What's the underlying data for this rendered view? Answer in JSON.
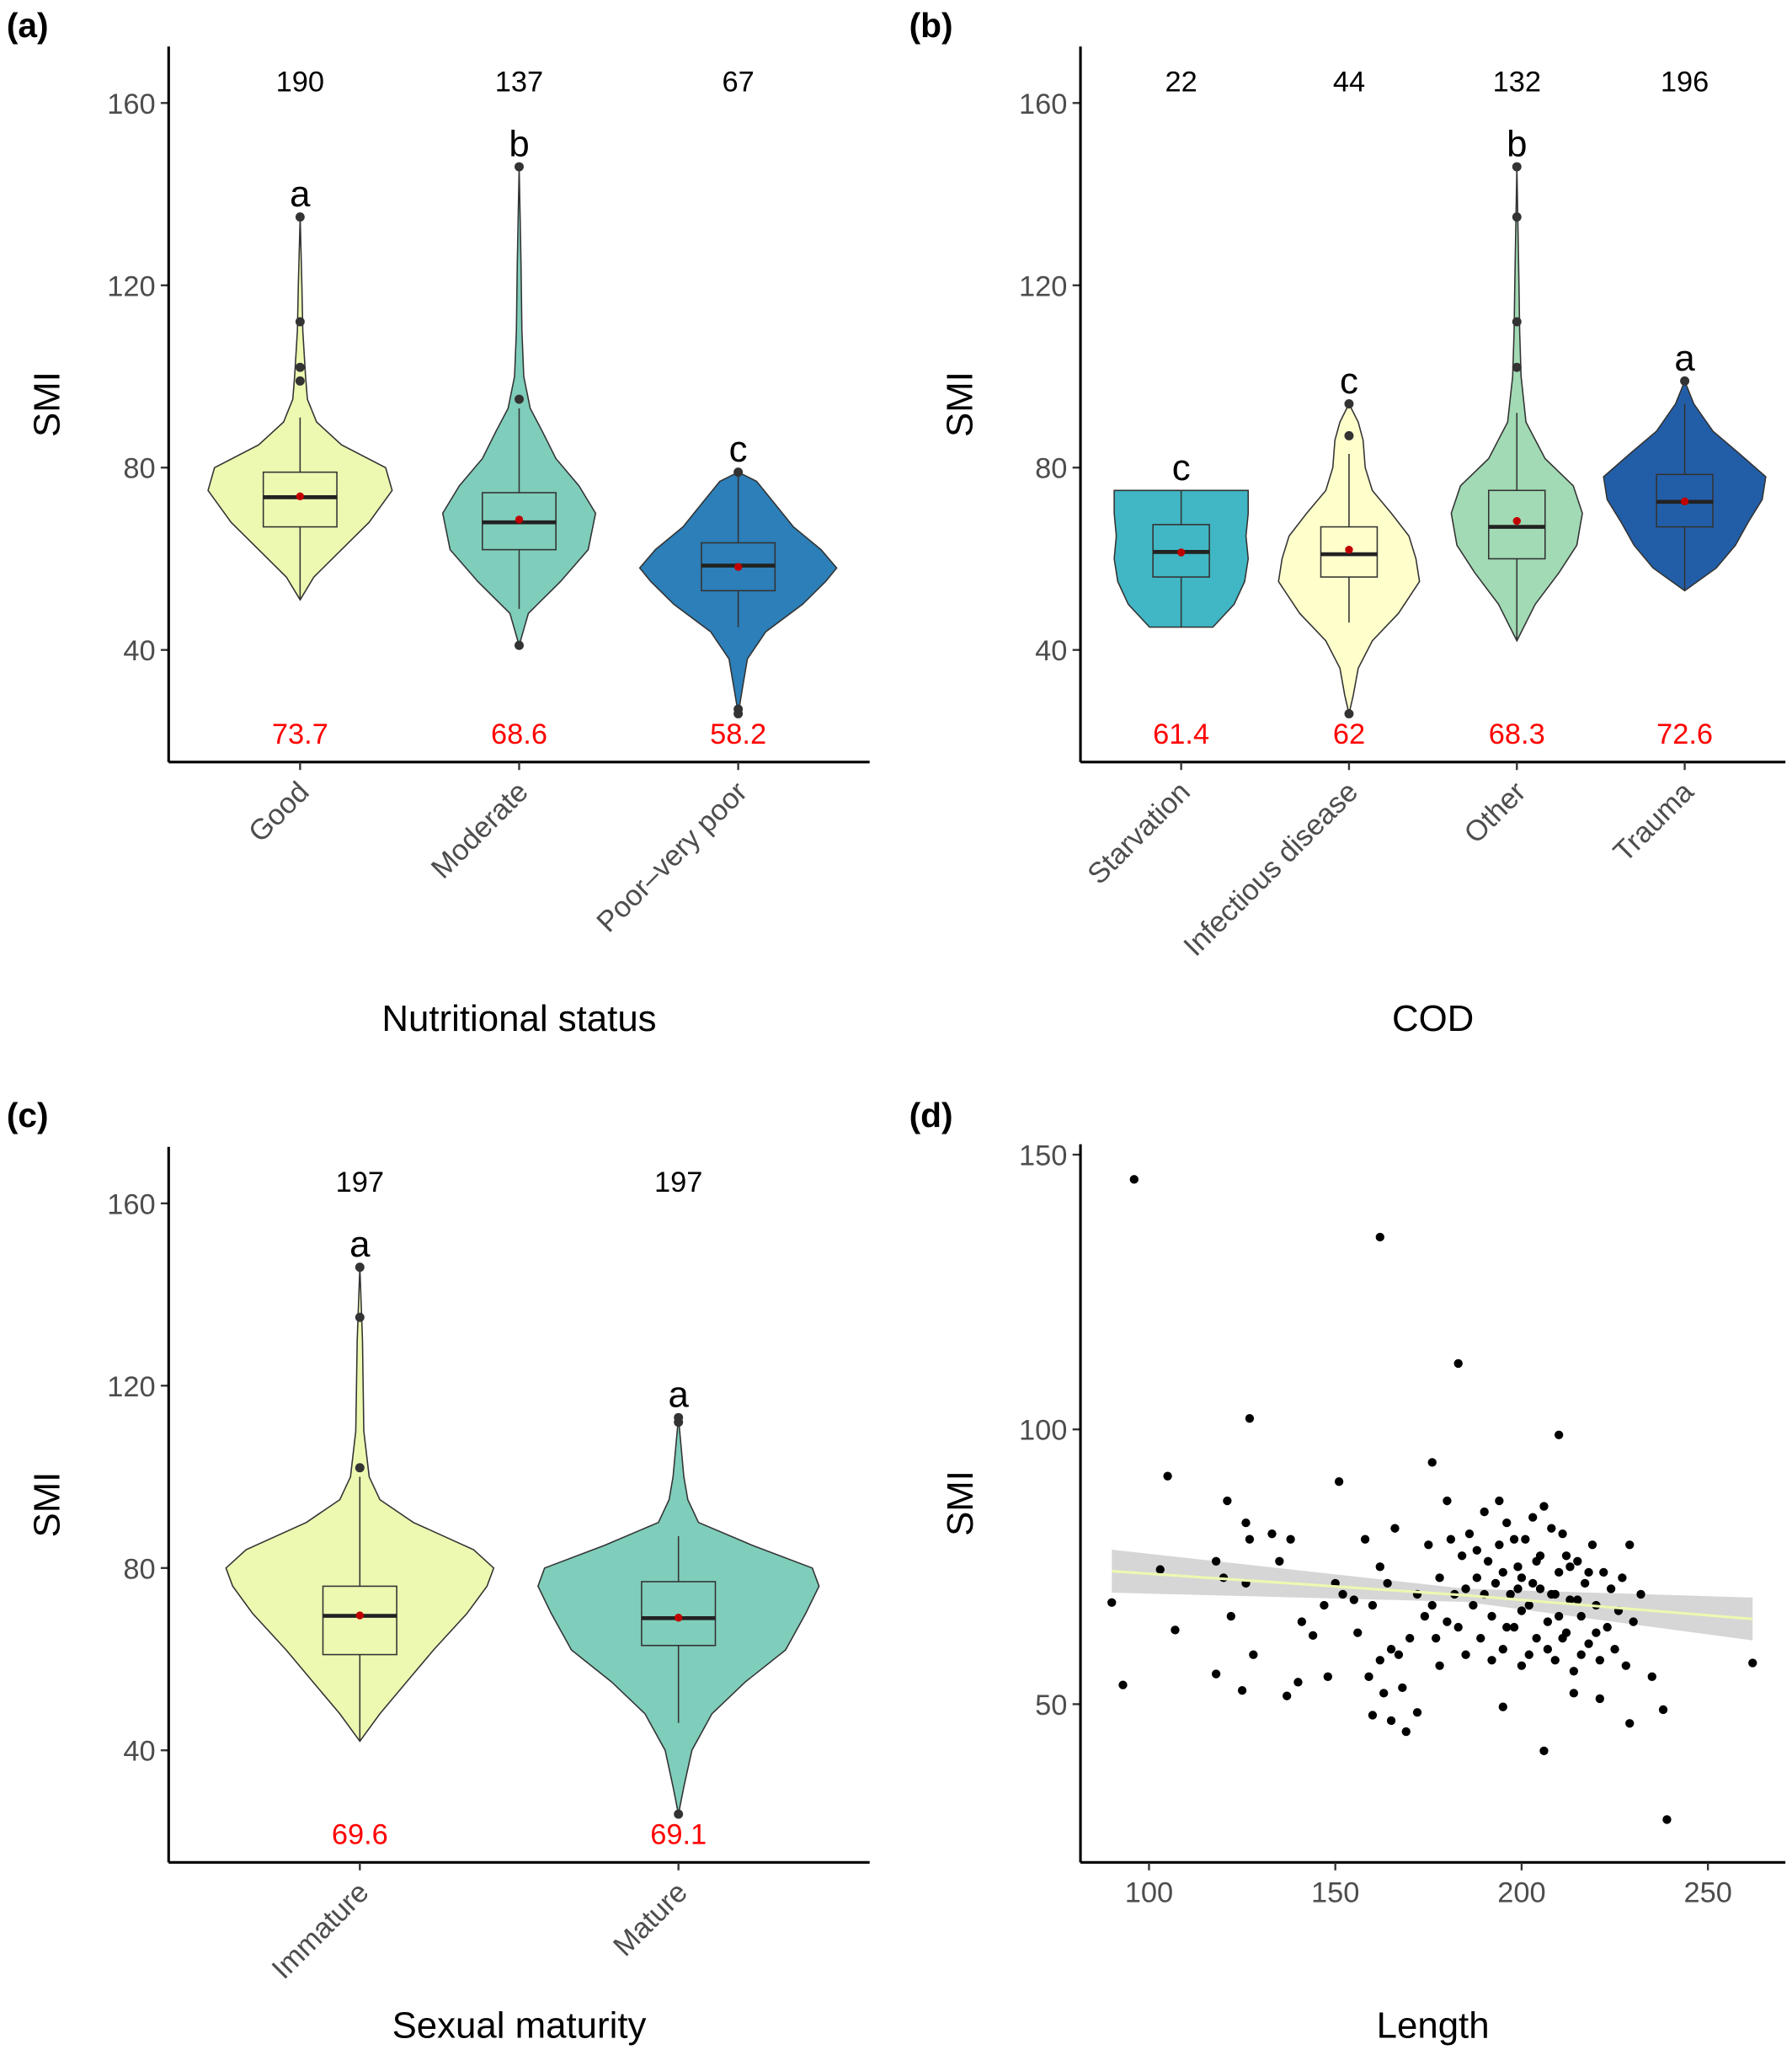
{
  "chart_data": [
    {
      "type": "violin",
      "panel_label": "(a)",
      "xlabel": "Nutritional status",
      "ylabel": "SMI",
      "ylim": [
        15.4,
        172.4
      ],
      "yticks": [
        40,
        80,
        120,
        160
      ],
      "categories": [
        "Good",
        "Moderate",
        "Poor–very poor"
      ],
      "groups": [
        {
          "color": "#edf8b1",
          "n": 190,
          "letter": "a",
          "mean": 73.7,
          "q1": 67,
          "median": 73.5,
          "q3": 79,
          "whisker_low": 51,
          "whisker_high": 91,
          "outliers": [
            99,
            102,
            112,
            135
          ],
          "density_y": [
            51,
            56,
            62,
            68,
            75,
            80,
            85,
            90,
            95,
            100,
            110,
            120,
            135
          ],
          "density": [
            0,
            0.15,
            0.45,
            0.75,
            1.0,
            0.93,
            0.45,
            0.18,
            0.08,
            0.06,
            0.03,
            0.02,
            0
          ]
        },
        {
          "color": "#7fcdbb",
          "n": 137,
          "letter": "b",
          "mean": 68.6,
          "q1": 62,
          "median": 68,
          "q3": 74.5,
          "whisker_low": 49,
          "whisker_high": 93,
          "outliers": [
            41,
            95,
            146
          ],
          "density_y": [
            41,
            48,
            55,
            62,
            70,
            76,
            82,
            88,
            93,
            100,
            110,
            125,
            146
          ],
          "density": [
            0,
            0.1,
            0.45,
            0.75,
            0.83,
            0.65,
            0.4,
            0.25,
            0.12,
            0.05,
            0.03,
            0.02,
            0
          ]
        },
        {
          "color": "#2c7fb8",
          "n": 67,
          "letter": "c",
          "mean": 58.2,
          "q1": 53,
          "median": 58.5,
          "q3": 63.5,
          "whisker_low": 45,
          "whisker_high": 78,
          "outliers": [
            26,
            27,
            79
          ],
          "density_y": [
            26,
            32,
            38,
            44,
            50,
            55,
            58,
            62,
            67,
            72,
            77,
            79
          ],
          "density": [
            0,
            0.05,
            0.1,
            0.3,
            0.7,
            0.95,
            1.07,
            0.9,
            0.6,
            0.4,
            0.2,
            0
          ]
        }
      ]
    },
    {
      "type": "violin",
      "panel_label": "(b)",
      "xlabel": "COD",
      "ylabel": "SMI",
      "ylim": [
        15.4,
        172.4
      ],
      "yticks": [
        40,
        80,
        120,
        160
      ],
      "categories": [
        "Starvation",
        "Infectious disease",
        "Other",
        "Trauma"
      ],
      "groups": [
        {
          "color": "#41b6c4",
          "n": 22,
          "letter": "c",
          "mean": 61.4,
          "q1": 56,
          "median": 61.5,
          "q3": 67.5,
          "whisker_low": 45,
          "whisker_high": 75,
          "outliers": [],
          "density_y": [
            45,
            50,
            55,
            60,
            65,
            70,
            75
          ],
          "density": [
            0.45,
            0.75,
            0.9,
            0.95,
            0.92,
            0.95,
            0.95
          ]
        },
        {
          "color": "#ffffcc",
          "n": 44,
          "letter": "c",
          "mean": 62,
          "q1": 56,
          "median": 61,
          "q3": 67,
          "whisker_low": 46,
          "whisker_high": 83,
          "outliers": [
            26,
            87,
            94
          ],
          "density_y": [
            26,
            30,
            36,
            42,
            48,
            55,
            60,
            65,
            70,
            75,
            80,
            86,
            90,
            94
          ],
          "density": [
            0,
            0.06,
            0.13,
            0.33,
            0.7,
            1.0,
            0.95,
            0.85,
            0.6,
            0.33,
            0.23,
            0.2,
            0.13,
            0
          ]
        },
        {
          "color": "#a1dab4",
          "n": 132,
          "letter": "b",
          "mean": 68.3,
          "q1": 60,
          "median": 67,
          "q3": 75,
          "whisker_low": 42,
          "whisker_high": 92,
          "outliers": [
            102,
            112,
            135,
            146
          ],
          "density_y": [
            42,
            50,
            57,
            63,
            70,
            76,
            82,
            90,
            100,
            110,
            120,
            146
          ],
          "density": [
            0,
            0.26,
            0.6,
            0.85,
            0.93,
            0.8,
            0.4,
            0.13,
            0.06,
            0.04,
            0.03,
            0
          ]
        },
        {
          "color": "#225ea8",
          "n": 196,
          "letter": "a",
          "mean": 72.6,
          "q1": 67,
          "median": 72.5,
          "q3": 78.5,
          "whisker_low": 53,
          "whisker_high": 94,
          "outliers": [
            99
          ],
          "density_y": [
            53,
            58,
            63,
            68,
            73,
            78,
            83,
            88,
            94,
            99
          ],
          "density": [
            0,
            0.45,
            0.72,
            0.9,
            1.1,
            1.15,
            0.78,
            0.4,
            0.13,
            0
          ]
        }
      ]
    },
    {
      "type": "violin",
      "panel_label": "(c)",
      "xlabel": "Sexual maturity",
      "ylabel": "SMI",
      "ylim": [
        15.4,
        172.4
      ],
      "yticks": [
        40,
        80,
        120,
        160
      ],
      "categories": [
        "Immature",
        "Mature"
      ],
      "groups": [
        {
          "color": "#edf8b1",
          "n": 197,
          "letter": "a",
          "mean": 69.6,
          "q1": 61,
          "median": 69.5,
          "q3": 76,
          "whisker_low": 42,
          "whisker_high": 100,
          "outliers": [
            102,
            135,
            146
          ],
          "density_y": [
            42,
            48,
            55,
            62,
            70,
            76,
            80,
            84,
            90,
            95,
            100,
            110,
            130,
            146
          ],
          "density": [
            0,
            0.15,
            0.35,
            0.55,
            0.8,
            0.95,
            1.0,
            0.85,
            0.4,
            0.15,
            0.07,
            0.03,
            0.02,
            0
          ]
        },
        {
          "color": "#7fcdbb",
          "n": 197,
          "letter": "a",
          "mean": 69.1,
          "q1": 63,
          "median": 69,
          "q3": 77,
          "whisker_low": 46,
          "whisker_high": 87,
          "outliers": [
            26,
            112,
            113
          ],
          "density_y": [
            26,
            32,
            40,
            48,
            55,
            62,
            70,
            76,
            80,
            85,
            90,
            95,
            100,
            113
          ],
          "density": [
            0,
            0.04,
            0.1,
            0.25,
            0.5,
            0.8,
            0.95,
            1.05,
            1.0,
            0.55,
            0.15,
            0.07,
            0.04,
            0
          ]
        }
      ]
    },
    {
      "type": "scatter",
      "panel_label": "(d)",
      "xlabel": "Length",
      "ylabel": "SMI",
      "xlim": [
        81.6,
        270.8
      ],
      "ylim": [
        21.2,
        151.9
      ],
      "xticks": [
        100,
        150,
        200,
        250
      ],
      "yticks": [
        50,
        100,
        150
      ],
      "color": "#000000",
      "x": [
        96,
        162,
        183,
        127,
        210,
        105,
        176,
        151,
        93,
        90,
        107,
        118,
        125,
        128,
        137,
        140,
        165,
        169,
        206,
        238,
        229,
        239,
        262,
        235,
        195,
        221,
        214,
        160,
        163,
        172,
        122,
        121,
        126,
        127,
        133,
        138,
        147,
        144,
        148,
        141,
        118,
        103,
        120,
        126,
        135,
        150,
        152,
        155,
        158,
        162,
        164,
        166,
        167,
        160,
        156,
        159,
        162,
        165,
        168,
        170,
        172,
        174,
        175,
        177,
        178,
        180,
        181,
        182,
        183,
        184,
        185,
        186,
        187,
        188,
        189,
        190,
        191,
        192,
        193,
        194,
        195,
        196,
        197,
        198,
        199,
        200,
        201,
        202,
        203,
        204,
        205,
        206,
        207,
        208,
        209,
        210,
        211,
        212,
        213,
        214,
        215,
        216,
        217,
        218,
        219,
        220,
        221,
        222,
        223,
        224,
        225,
        226,
        227,
        228,
        229,
        230,
        232,
        190,
        192,
        195,
        198,
        200,
        203,
        205,
        207,
        210,
        212,
        215,
        218,
        220,
        188,
        185,
        180,
        178,
        176,
        200,
        202,
        196,
        194,
        199,
        204,
        208,
        211,
        213,
        216,
        209
      ],
      "y": [
        145.5,
        135,
        112,
        102,
        99,
        91.5,
        94,
        90.5,
        53.5,
        68.5,
        63.5,
        55.5,
        52.5,
        59,
        51.5,
        54,
        47,
        45,
        41.5,
        49,
        46.5,
        29,
        57.5,
        55,
        49.5,
        51,
        52,
        48,
        52,
        48.5,
        66,
        87,
        83,
        80,
        81,
        80,
        68,
        62.5,
        55,
        65,
        76,
        74.5,
        73,
        72,
        76,
        72,
        70,
        69,
        80,
        75,
        72,
        82,
        59,
        68,
        63,
        55,
        58,
        60,
        53,
        62,
        70,
        66,
        79,
        62,
        73,
        87,
        80,
        70,
        64,
        77,
        59,
        81,
        68,
        73,
        62,
        85,
        76,
        66,
        72,
        79,
        60,
        83,
        70,
        64,
        75,
        57,
        80,
        68,
        72,
        62,
        77,
        86,
        65,
        70,
        58,
        74,
        81,
        63,
        69,
        56,
        76,
        66,
        72,
        61,
        79,
        68,
        58,
        74,
        64,
        71,
        60,
        67,
        73,
        57,
        79,
        65,
        70,
        70,
        58,
        74,
        80,
        67,
        84,
        71,
        60,
        66,
        77,
        69,
        74,
        63,
        78,
        71,
        65,
        57,
        68,
        73,
        59,
        64,
        87,
        71,
        76,
        82,
        62,
        75,
        59,
        70
      ],
      "fit": {
        "color": "#edf8b1",
        "band_color": "#cccccc",
        "x": [
          90,
          185,
          262
        ],
        "y": [
          74.2,
          69.8,
          65.5
        ],
        "lower": [
          70.3,
          68.6,
          61.6
        ],
        "upper": [
          78.1,
          71.0,
          69.4
        ]
      }
    }
  ]
}
